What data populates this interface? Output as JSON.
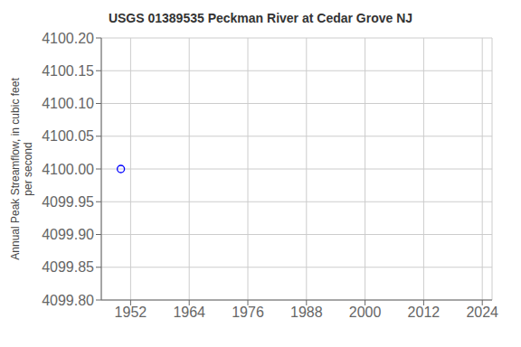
{
  "chart_data": {
    "type": "scatter",
    "title": "USGS 01389535 Peckman River at Cedar Grove NJ",
    "ylabel": "Annual Peak Streamflow, in cubic feet\nper second",
    "x": [
      1950
    ],
    "values": [
      4100.0
    ],
    "color": "blue",
    "marker": "circle",
    "xlim": [
      1946,
      2026
    ],
    "ylim": [
      4099.8,
      4100.2
    ],
    "xticks": [
      1952,
      1964,
      1976,
      1988,
      2000,
      2012,
      2024
    ],
    "yticks": [
      {
        "value": 4099.8,
        "label": "4099.80"
      },
      4099.85,
      {
        "value": 4099.9,
        "label": "4099.90"
      },
      4099.95,
      {
        "value": 4100.0,
        "label": "4100.00"
      },
      4100.05,
      {
        "value": 4100.1,
        "label": "4100.10"
      },
      4100.15,
      {
        "value": 4100.2,
        "label": "4100.20"
      }
    ],
    "grid": true
  }
}
